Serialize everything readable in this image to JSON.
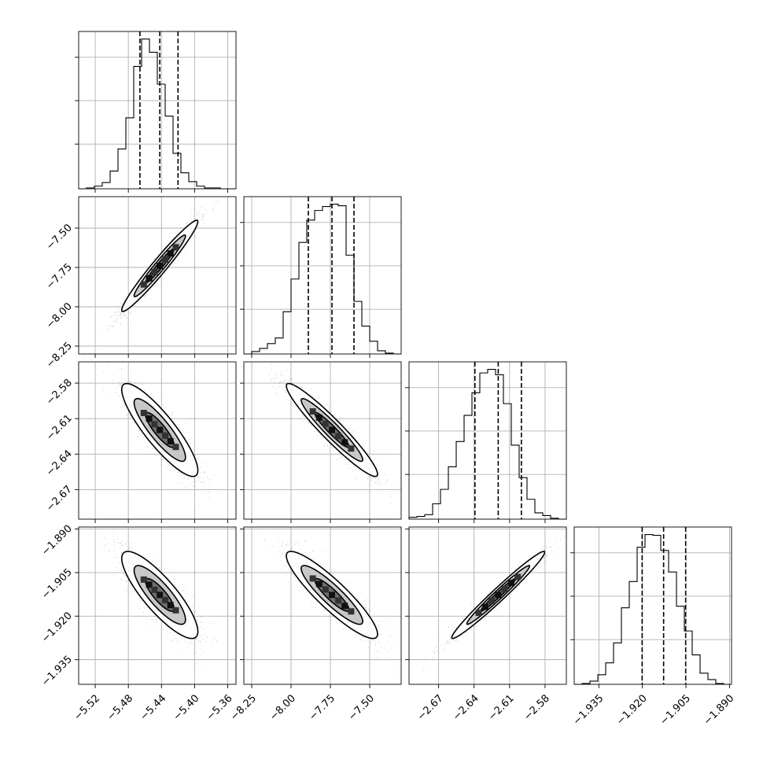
{
  "chart_data": {
    "type": "corner",
    "grid": true,
    "parameters": [
      {
        "id": "p0",
        "range": [
          -5.54,
          -5.35
        ],
        "ticks": [
          -5.52,
          -5.48,
          -5.44,
          -5.4,
          -5.36
        ],
        "tick_labels": [
          "−5.52",
          "−5.48",
          "−5.44",
          "−5.40",
          "−5.36"
        ],
        "hist_counts": [
          0,
          1,
          3,
          7,
          20,
          45,
          80,
          138,
          169,
          154,
          118,
          82,
          40,
          18,
          8,
          3,
          1,
          1,
          0,
          0
        ],
        "quantiles": [
          -5.466,
          -5.442,
          -5.42
        ]
      },
      {
        "id": "p1",
        "range": [
          -8.3,
          -7.3
        ],
        "ticks": [
          -8.25,
          -8.0,
          -7.75,
          -7.5
        ],
        "tick_labels": [
          "−8.25",
          "−8.00",
          "−7.75",
          "−7.50"
        ],
        "hist_counts": [
          0,
          3,
          7,
          13,
          20,
          53,
          94,
          140,
          168,
          180,
          185,
          188,
          186,
          124,
          66,
          35,
          16,
          4,
          1,
          0
        ],
        "quantiles": [
          -7.89,
          -7.74,
          -7.6
        ]
      },
      {
        "id": "p2",
        "range": [
          -2.695,
          -2.562
        ],
        "ticks": [
          -2.67,
          -2.64,
          -2.61,
          -2.58
        ],
        "tick_labels": [
          "−2.67",
          "−2.64",
          "−2.61",
          "−2.58"
        ],
        "hist_counts": [
          2,
          3,
          5,
          17,
          33,
          58,
          86,
          115,
          140,
          162,
          166,
          160,
          128,
          82,
          46,
          22,
          7,
          4,
          1,
          0
        ],
        "quantiles": [
          -2.6393,
          -2.6196,
          -2.6
        ]
      },
      {
        "id": "p3",
        "range": [
          -1.9435,
          -1.8893
        ],
        "ticks": [
          -1.935,
          -1.92,
          -1.905,
          -1.89
        ],
        "tick_labels": [
          "−1.935",
          "−1.920",
          "−1.905",
          "−1.890"
        ],
        "hist_counts": [
          0,
          1,
          4,
          12,
          27,
          52,
          96,
          129,
          172,
          188,
          187,
          168,
          141,
          98,
          67,
          37,
          14,
          6,
          1,
          0
        ],
        "quantiles": [
          -1.9201,
          -1.9127,
          -1.9051
        ]
      }
    ],
    "pairs": [
      {
        "row": 1,
        "col": 0,
        "correlation": 0.97
      },
      {
        "row": 2,
        "col": 0,
        "correlation": -0.87
      },
      {
        "row": 2,
        "col": 1,
        "correlation": -0.95
      },
      {
        "row": 3,
        "col": 0,
        "correlation": -0.84
      },
      {
        "row": 3,
        "col": 1,
        "correlation": -0.9
      },
      {
        "row": 3,
        "col": 2,
        "correlation": 0.98
      }
    ]
  }
}
